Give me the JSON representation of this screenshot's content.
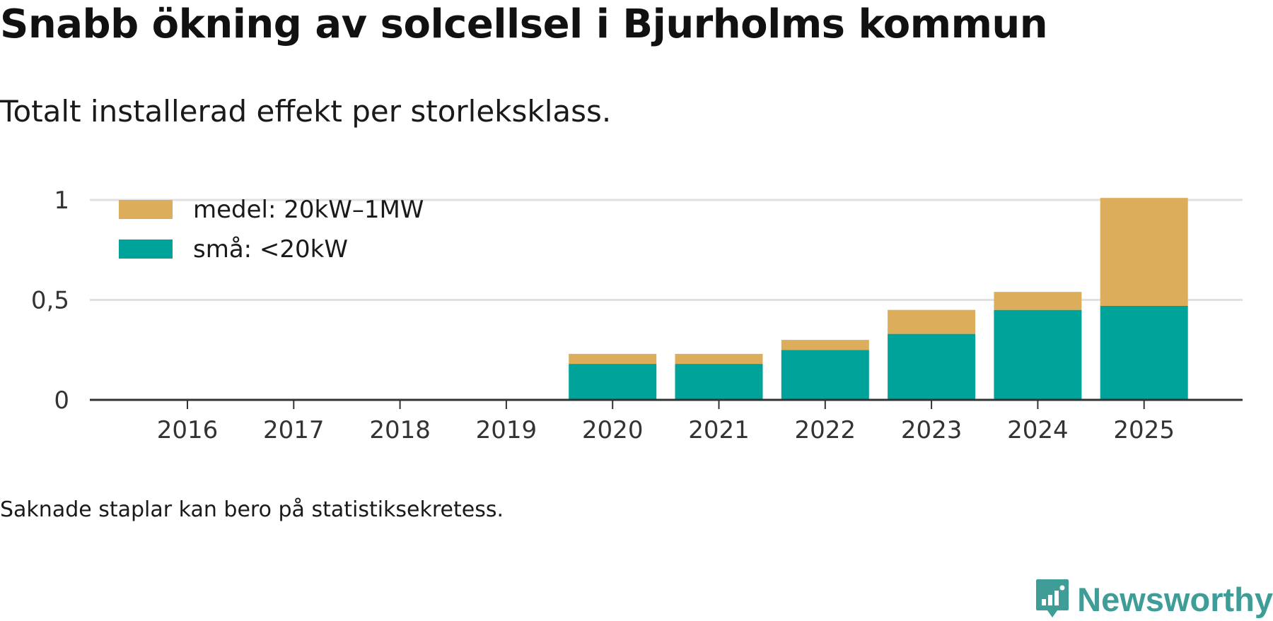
{
  "title": "Snabb ökning av solcellsel i Bjurholms kommun",
  "subtitle": "Totalt installerad effekt per storleksklass.",
  "footnote": "Saknade staplar kan bero på statistiksekretess.",
  "brand": "Newsworthy",
  "colors": {
    "medel": "#dcae5b",
    "sma": "#00a39a",
    "axis": "#333333",
    "grid": "#e0e0e0",
    "brand": "#3f9d97"
  },
  "chart_data": {
    "type": "bar",
    "stacked": true,
    "categories": [
      "2016",
      "2017",
      "2018",
      "2019",
      "2020",
      "2021",
      "2022",
      "2023",
      "2024",
      "2025"
    ],
    "series": [
      {
        "name": "små: <20kW",
        "color": "#00a39a",
        "values": [
          null,
          null,
          null,
          null,
          0.18,
          0.18,
          0.25,
          0.33,
          0.45,
          0.47
        ]
      },
      {
        "name": "medel: 20kW–1MW",
        "color": "#dcae5b",
        "values": [
          null,
          null,
          null,
          null,
          0.05,
          0.05,
          0.05,
          0.12,
          0.09,
          0.54
        ]
      }
    ],
    "yticks": [
      0,
      0.5,
      1
    ],
    "ytick_labels": [
      "0",
      "0,5",
      "1"
    ],
    "ylim": [
      0,
      1.02
    ],
    "legend": [
      "medel: 20kW–1MW",
      "små: <20kW"
    ],
    "legend_position": "top-left",
    "grid": true
  }
}
